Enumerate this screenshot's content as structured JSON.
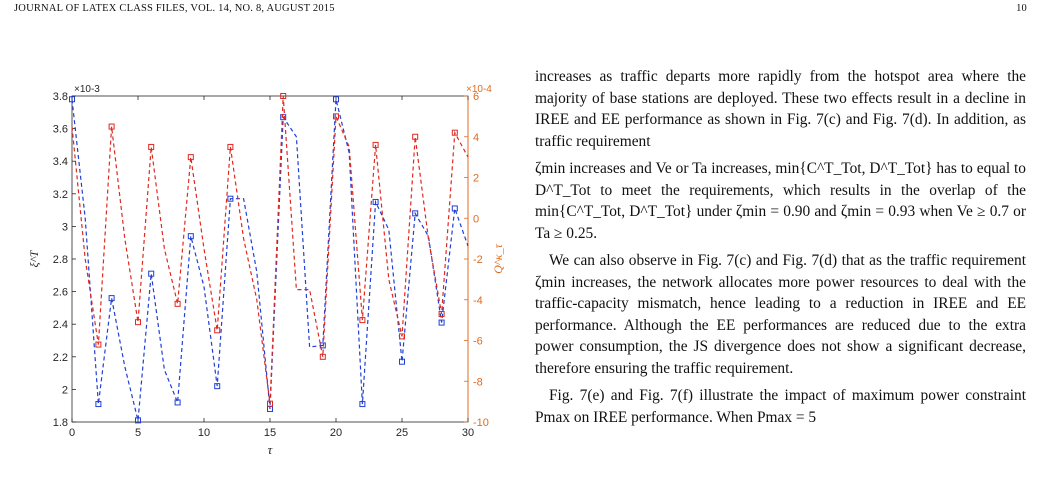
{
  "header": {
    "journal": "JOURNAL OF LATEX CLASS FILES, VOL. 14, NO. 8, AUGUST 2015",
    "page_number": "10"
  },
  "chart_data": {
    "type": "line",
    "xlabel": "τ",
    "ylabel_left": "ξ^T",
    "ylabel_right": "Q^κ_τ",
    "left_axis_exponent": "×10^-3",
    "right_axis_exponent": "×10^-4",
    "x_ticks": [
      0,
      5,
      10,
      15,
      20,
      25,
      30
    ],
    "xlim": [
      0,
      30
    ],
    "left_ylim": [
      1.8,
      3.8
    ],
    "left_ticks": [
      "1.8",
      "2",
      "2.2",
      "2.4",
      "2.6",
      "2.8",
      "3",
      "3.2",
      "3.4",
      "3.6",
      "3.8"
    ],
    "right_ylim": [
      -10,
      6
    ],
    "right_ticks": [
      "-10",
      "-8",
      "-6",
      "-4",
      "-2",
      "0",
      "2",
      "4",
      "6"
    ],
    "grid": false,
    "colors": {
      "left": "#1f3fd6",
      "right": "#e0281f",
      "right_axis": "#e06b1f"
    },
    "series": [
      {
        "axis": "left",
        "style": "dashed",
        "marker": "square",
        "points": [
          [
            0,
            3.78
          ],
          [
            1,
            3.05
          ],
          [
            2,
            1.91
          ],
          [
            3,
            2.56
          ],
          [
            4,
            2.14
          ],
          [
            5,
            1.81
          ],
          [
            6,
            2.71
          ],
          [
            7,
            2.12
          ],
          [
            8,
            1.92
          ],
          [
            9,
            2.94
          ],
          [
            10,
            2.63
          ],
          [
            11,
            2.02
          ],
          [
            12,
            3.17
          ],
          [
            13,
            3.17
          ],
          [
            14,
            2.72
          ],
          [
            15,
            1.88
          ],
          [
            16,
            3.67
          ],
          [
            17,
            3.55
          ],
          [
            18,
            2.26
          ],
          [
            19,
            2.27
          ],
          [
            20,
            3.78
          ],
          [
            21,
            3.45
          ],
          [
            22,
            1.91
          ],
          [
            23,
            3.15
          ],
          [
            24,
            2.98
          ],
          [
            25,
            2.17
          ],
          [
            26,
            3.08
          ],
          [
            27,
            2.94
          ],
          [
            28,
            2.41
          ],
          [
            29,
            3.11
          ],
          [
            30,
            2.88
          ]
        ],
        "marked": [
          0,
          2,
          3,
          5,
          6,
          8,
          9,
          11,
          12,
          15,
          16,
          19,
          20,
          22,
          23,
          25,
          26,
          28,
          29
        ]
      },
      {
        "axis": "right",
        "style": "dashed",
        "marker": "square",
        "points": [
          [
            0,
            4.5
          ],
          [
            1,
            -2.0
          ],
          [
            2,
            -6.2
          ],
          [
            3,
            4.5
          ],
          [
            4,
            -1.0
          ],
          [
            5,
            -5.1
          ],
          [
            6,
            3.5
          ],
          [
            7,
            -1.5
          ],
          [
            8,
            -4.2
          ],
          [
            9,
            3.0
          ],
          [
            10,
            -1.5
          ],
          [
            11,
            -5.5
          ],
          [
            12,
            3.5
          ],
          [
            13,
            -1.0
          ],
          [
            14,
            -4.0
          ],
          [
            15,
            -9.1
          ],
          [
            16,
            6.0
          ],
          [
            17,
            -3.5
          ],
          [
            18,
            -3.5
          ],
          [
            19,
            -6.8
          ],
          [
            20,
            5.0
          ],
          [
            21,
            3.5
          ],
          [
            22,
            -5.0
          ],
          [
            23,
            3.6
          ],
          [
            24,
            -3.0
          ],
          [
            25,
            -5.8
          ],
          [
            26,
            4.0
          ],
          [
            27,
            -1.0
          ],
          [
            28,
            -4.7
          ],
          [
            29,
            4.2
          ],
          [
            30,
            3.0
          ]
        ],
        "marked": [
          2,
          3,
          5,
          6,
          8,
          9,
          11,
          12,
          15,
          16,
          19,
          20,
          22,
          23,
          25,
          26,
          28,
          29
        ]
      }
    ]
  },
  "text": {
    "p1": "increases as traffic departs more rapidly from the hotspot area where the majority of base stations are deployed. These two effects result in a decline in IREE and EE performance as shown in Fig. 7(c) and Fig. 7(d). In addition, as traffic requirement",
    "p1b": "ζmin increases and Ve or Ta increases, min{C^T_Tot, D^T_Tot} has to equal to D^T_Tot to meet the requirements, which results in the overlap of the min{C^T_Tot, D^T_Tot} under ζmin = 0.90 and ζmin = 0.93 when Ve ≥ 0.7 or Ta ≥ 0.25.",
    "p2": "We can also observe in Fig. 7(c) and Fig. 7(d) that as the traffic requirement ζmin increases, the network allocates more power resources to deal with the traffic-capacity mismatch, hence leading to a reduction in IREE and EE performance. Although the EE performances are reduced due to the extra power consumption, the JS divergence does not show a significant decrease, therefore ensuring the traffic requirement.",
    "p3": "Fig. 7(e) and Fig. 7(f) illustrate the impact of maximum power constraint Pmax on IREE performance. When Pmax = 5"
  }
}
